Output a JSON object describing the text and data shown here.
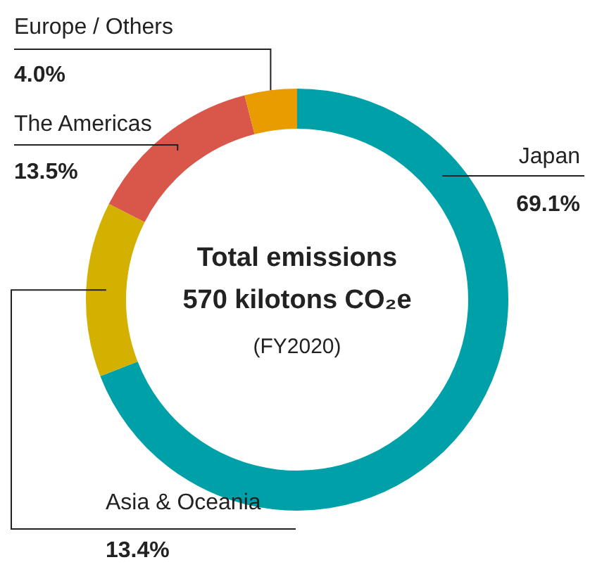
{
  "chart_data": {
    "type": "donut",
    "title": "Total emissions 570 kilotons CO₂e",
    "subtitle": "(FY2020)",
    "categories": [
      "Japan",
      "Asia & Oceania",
      "The Americas",
      "Europe / Others"
    ],
    "values": [
      69.1,
      13.4,
      13.5,
      4.0
    ],
    "value_labels": [
      "69.1%",
      "13.4%",
      "13.5%",
      "4.0%"
    ],
    "colors": [
      "#00a0a8",
      "#d4b000",
      "#d9574a",
      "#e89c00"
    ],
    "legend": false
  }
}
